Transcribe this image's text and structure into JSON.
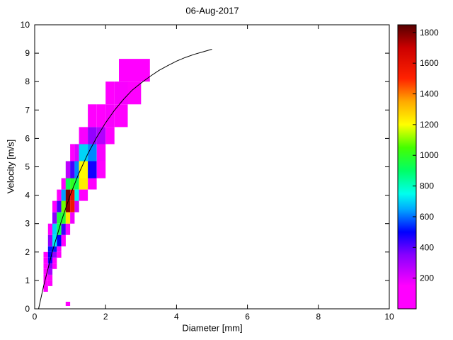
{
  "chart_data": {
    "type": "heatmap",
    "title": "06-Aug-2017",
    "xlabel": "Diameter [mm]",
    "ylabel": "Velocity [m/s]",
    "xlim": [
      0,
      10
    ],
    "ylim": [
      0,
      10
    ],
    "xticks": [
      0,
      2,
      4,
      6,
      8,
      10
    ],
    "yticks": [
      0,
      1,
      2,
      3,
      4,
      5,
      6,
      7,
      8,
      9,
      10
    ],
    "grid": false,
    "legend_position": "none",
    "colorbar": {
      "min": 0,
      "max": 1850,
      "ticks": [
        200,
        400,
        600,
        800,
        1000,
        1200,
        1400,
        1600,
        1800
      ],
      "colormap": [
        [
          0,
          "#ff00ff"
        ],
        [
          150,
          "#ff00ff"
        ],
        [
          350,
          "#8800ff"
        ],
        [
          500,
          "#0000ff"
        ],
        [
          650,
          "#00aaff"
        ],
        [
          750,
          "#00ffee"
        ],
        [
          900,
          "#00ff66"
        ],
        [
          1050,
          "#44ff00"
        ],
        [
          1200,
          "#ffff00"
        ],
        [
          1350,
          "#ffaa00"
        ],
        [
          1500,
          "#ff2200"
        ],
        [
          1700,
          "#cc0000"
        ],
        [
          1850,
          "#550000"
        ]
      ]
    },
    "cells_columns": [
      "d_min",
      "d_max",
      "v_min",
      "v_max",
      "count"
    ],
    "cells": [
      [
        0.875,
        1.0,
        0.1,
        0.25,
        90
      ],
      [
        0.25,
        0.375,
        0.6,
        0.8,
        90
      ],
      [
        0.25,
        0.375,
        0.8,
        1.0,
        130
      ],
      [
        0.25,
        0.375,
        1.0,
        1.2,
        90
      ],
      [
        0.25,
        0.375,
        1.2,
        1.4,
        90
      ],
      [
        0.25,
        0.375,
        1.4,
        1.6,
        110
      ],
      [
        0.25,
        0.375,
        1.6,
        1.8,
        90
      ],
      [
        0.25,
        0.375,
        1.8,
        2.0,
        70
      ],
      [
        0.375,
        0.5,
        0.8,
        1.0,
        80
      ],
      [
        0.375,
        0.5,
        1.0,
        1.2,
        140
      ],
      [
        0.375,
        0.5,
        1.2,
        1.4,
        300
      ],
      [
        0.375,
        0.5,
        1.4,
        1.6,
        350
      ],
      [
        0.375,
        0.5,
        1.6,
        1.8,
        480
      ],
      [
        0.375,
        0.5,
        1.8,
        2.0,
        500
      ],
      [
        0.375,
        0.5,
        2.0,
        2.2,
        520
      ],
      [
        0.375,
        0.5,
        2.2,
        2.6,
        330
      ],
      [
        0.375,
        0.5,
        2.6,
        3.0,
        120
      ],
      [
        0.5,
        0.625,
        1.4,
        1.6,
        90
      ],
      [
        0.5,
        0.625,
        1.6,
        1.8,
        150
      ],
      [
        0.5,
        0.625,
        1.8,
        2.0,
        330
      ],
      [
        0.5,
        0.625,
        2.0,
        2.2,
        520
      ],
      [
        0.5,
        0.625,
        2.2,
        2.6,
        730
      ],
      [
        0.5,
        0.625,
        2.6,
        3.0,
        700
      ],
      [
        0.5,
        0.625,
        3.0,
        3.4,
        340
      ],
      [
        0.5,
        0.625,
        3.4,
        3.8,
        110
      ],
      [
        0.625,
        0.75,
        1.8,
        2.0,
        90
      ],
      [
        0.625,
        0.75,
        2.0,
        2.2,
        160
      ],
      [
        0.625,
        0.75,
        2.2,
        2.6,
        500
      ],
      [
        0.625,
        0.75,
        2.6,
        3.0,
        930
      ],
      [
        0.625,
        0.75,
        3.0,
        3.4,
        960
      ],
      [
        0.625,
        0.75,
        3.4,
        3.8,
        420
      ],
      [
        0.625,
        0.75,
        3.8,
        4.2,
        110
      ],
      [
        0.75,
        0.875,
        2.2,
        2.6,
        110
      ],
      [
        0.75,
        0.875,
        2.6,
        3.0,
        430
      ],
      [
        0.75,
        0.875,
        3.0,
        3.4,
        980
      ],
      [
        0.75,
        0.875,
        3.4,
        3.8,
        1080
      ],
      [
        0.75,
        0.875,
        3.8,
        4.2,
        640
      ],
      [
        0.75,
        0.875,
        4.2,
        4.6,
        150
      ],
      [
        0.875,
        1.0,
        2.6,
        3.0,
        160
      ],
      [
        0.875,
        1.0,
        3.0,
        3.4,
        1250
      ],
      [
        0.875,
        1.0,
        3.4,
        3.8,
        1780
      ],
      [
        0.875,
        1.0,
        3.8,
        4.2,
        1800
      ],
      [
        0.875,
        1.0,
        4.2,
        4.6,
        930
      ],
      [
        0.875,
        1.0,
        4.6,
        5.2,
        260
      ],
      [
        1.0,
        1.125,
        3.0,
        3.4,
        170
      ],
      [
        1.0,
        1.125,
        3.4,
        3.8,
        1560
      ],
      [
        1.0,
        1.125,
        3.8,
        4.2,
        1600
      ],
      [
        1.0,
        1.125,
        4.2,
        4.6,
        1000
      ],
      [
        1.0,
        1.125,
        4.6,
        5.2,
        420
      ],
      [
        1.0,
        1.125,
        5.2,
        5.8,
        110
      ],
      [
        1.125,
        1.25,
        3.4,
        3.8,
        220
      ],
      [
        1.125,
        1.25,
        3.8,
        4.2,
        740
      ],
      [
        1.125,
        1.25,
        4.2,
        4.6,
        930
      ],
      [
        1.125,
        1.25,
        4.6,
        5.2,
        620
      ],
      [
        1.125,
        1.25,
        5.2,
        5.8,
        210
      ],
      [
        1.25,
        1.5,
        3.8,
        4.2,
        140
      ],
      [
        1.25,
        1.5,
        4.2,
        4.6,
        1230
      ],
      [
        1.25,
        1.5,
        4.6,
        5.2,
        1210
      ],
      [
        1.25,
        1.5,
        5.2,
        5.8,
        700
      ],
      [
        1.25,
        1.5,
        5.8,
        6.4,
        160
      ],
      [
        1.5,
        1.75,
        4.2,
        4.6,
        110
      ],
      [
        1.5,
        1.75,
        4.6,
        5.2,
        480
      ],
      [
        1.5,
        1.75,
        5.2,
        5.8,
        620
      ],
      [
        1.5,
        1.75,
        5.8,
        6.4,
        330
      ],
      [
        1.5,
        1.75,
        6.4,
        7.2,
        110
      ],
      [
        1.75,
        2.0,
        4.6,
        5.2,
        100
      ],
      [
        1.75,
        2.0,
        5.2,
        5.8,
        160
      ],
      [
        1.75,
        2.0,
        5.8,
        6.4,
        280
      ],
      [
        1.75,
        2.0,
        6.4,
        7.2,
        150
      ],
      [
        2.0,
        2.25,
        5.8,
        6.4,
        110
      ],
      [
        2.0,
        2.25,
        6.4,
        7.2,
        160
      ],
      [
        2.0,
        2.25,
        7.2,
        8.0,
        110
      ],
      [
        2.25,
        2.625,
        6.4,
        7.2,
        120
      ],
      [
        2.25,
        2.625,
        7.2,
        8.0,
        160
      ],
      [
        2.625,
        3.0,
        7.2,
        8.0,
        110
      ],
      [
        2.375,
        2.625,
        8.0,
        8.8,
        120
      ],
      [
        2.625,
        3.25,
        8.0,
        8.8,
        140
      ]
    ],
    "curve": {
      "name": "terminal-velocity-fit",
      "x": [
        0.11,
        0.25,
        0.5,
        0.75,
        1.0,
        1.25,
        1.5,
        1.75,
        2.0,
        2.25,
        2.5,
        2.75,
        3.0,
        3.25,
        3.5,
        3.75,
        4.0,
        4.25,
        4.5,
        4.75,
        5.0
      ],
      "y": [
        0,
        0.79,
        2.02,
        3.08,
        4.0,
        4.78,
        5.46,
        6.04,
        6.55,
        6.99,
        7.37,
        7.7,
        7.95,
        8.18,
        8.39,
        8.56,
        8.72,
        8.85,
        8.96,
        9.05,
        9.14
      ]
    }
  }
}
